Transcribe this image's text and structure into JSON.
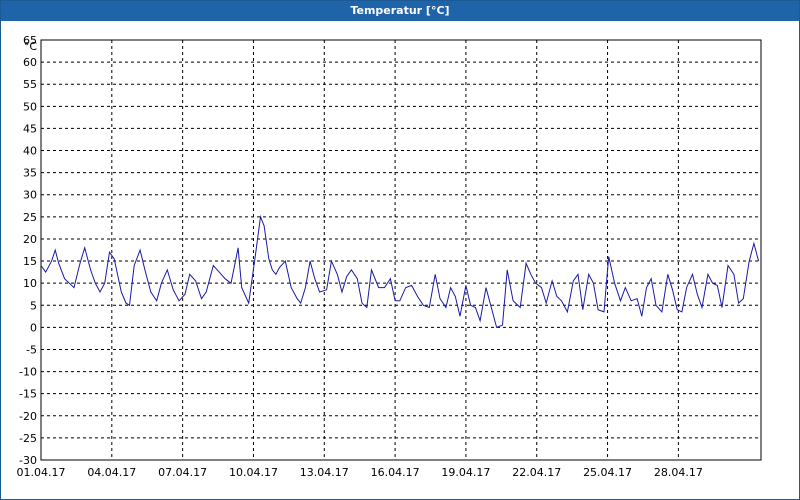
{
  "window": {
    "title": "Temperatur [°C]"
  },
  "chart_data": {
    "type": "line",
    "title": "Temperatur [°C]",
    "ylabel": "°C",
    "ylim": [
      -30,
      65
    ],
    "yticks": [
      65,
      60,
      55,
      50,
      45,
      40,
      35,
      30,
      25,
      20,
      15,
      10,
      5,
      0,
      -5,
      -10,
      -15,
      -20,
      -25,
      -30
    ],
    "xlim": [
      0,
      30.5
    ],
    "xticks": [
      {
        "day": 0,
        "label": "01.04.17"
      },
      {
        "day": 3,
        "label": "04.04.17"
      },
      {
        "day": 6,
        "label": "07.04.17"
      },
      {
        "day": 9,
        "label": "10.04.17"
      },
      {
        "day": 12,
        "label": "13.04.17"
      },
      {
        "day": 15,
        "label": "16.04.17"
      },
      {
        "day": 18,
        "label": "19.04.17"
      },
      {
        "day": 21,
        "label": "22.04.17"
      },
      {
        "day": 24,
        "label": "25.04.17"
      },
      {
        "day": 27,
        "label": "28.04.17"
      }
    ],
    "grid": true,
    "line_color": "#1a1aa6",
    "series": [
      {
        "name": "",
        "x": [
          0,
          0.2,
          0.45,
          0.6,
          0.75,
          1.0,
          1.2,
          1.4,
          1.65,
          1.85,
          2.1,
          2.3,
          2.5,
          2.7,
          2.9,
          3.1,
          3.4,
          3.6,
          3.75,
          3.95,
          4.2,
          4.4,
          4.65,
          4.9,
          5.1,
          5.35,
          5.6,
          5.85,
          6.1,
          6.3,
          6.55,
          6.8,
          7.0,
          7.3,
          7.55,
          7.8,
          8.05,
          8.2,
          8.35,
          8.5,
          8.8,
          9.05,
          9.3,
          9.45,
          9.65,
          9.8,
          9.95,
          10.1,
          10.35,
          10.6,
          10.85,
          11.0,
          11.2,
          11.4,
          11.6,
          11.8,
          12.1,
          12.3,
          12.55,
          12.75,
          12.95,
          13.15,
          13.4,
          13.6,
          13.8,
          14.0,
          14.3,
          14.55,
          14.8,
          15.0,
          15.2,
          15.45,
          15.7,
          15.95,
          16.2,
          16.45,
          16.7,
          16.9,
          17.15,
          17.35,
          17.55,
          17.75,
          18.0,
          18.2,
          18.4,
          18.6,
          18.85,
          19.05,
          19.3,
          19.55,
          19.75,
          20.0,
          20.3,
          20.55,
          20.75,
          20.95,
          21.2,
          21.4,
          21.65,
          21.85,
          22.05,
          22.3,
          22.55,
          22.75,
          22.95,
          23.2,
          23.4,
          23.6,
          23.85,
          24.05,
          24.3,
          24.55,
          24.75,
          25.0,
          25.25,
          25.45,
          25.65,
          25.85,
          26.05,
          26.3,
          26.55,
          26.75,
          26.95,
          27.15,
          27.35,
          27.6,
          27.8,
          28.0,
          28.25,
          28.45,
          28.65,
          28.85,
          29.1,
          29.35,
          29.55,
          29.75,
          30.0,
          30.2,
          30.4
        ],
        "y": [
          14.0,
          12.5,
          15.0,
          17.5,
          14.5,
          11.0,
          10.0,
          9.0,
          14.5,
          18.0,
          13.0,
          10.0,
          8.0,
          10.0,
          17.0,
          15.5,
          8.0,
          5.5,
          5.0,
          14.0,
          17.5,
          13.0,
          8.0,
          6.0,
          10.0,
          13.0,
          8.5,
          6.0,
          7.5,
          12.0,
          10.5,
          6.5,
          8.0,
          14.0,
          12.5,
          11.0,
          10.0,
          14.0,
          18.0,
          9.0,
          5.5,
          15.0,
          25.0,
          23.0,
          15.5,
          13.0,
          12.0,
          13.5,
          15.0,
          9.0,
          6.5,
          5.5,
          9.0,
          15.0,
          11.0,
          8.0,
          8.5,
          15.0,
          12.0,
          8.0,
          11.5,
          13.0,
          11.0,
          5.5,
          4.5,
          13.0,
          9.0,
          9.0,
          11.0,
          6.0,
          6.0,
          9.0,
          9.5,
          7.0,
          5.0,
          4.5,
          12.0,
          6.5,
          4.5,
          9.0,
          7.0,
          2.5,
          9.5,
          5.0,
          4.5,
          1.5,
          9.0,
          5.0,
          0.0,
          0.5,
          13.0,
          6.0,
          4.5,
          14.5,
          12.0,
          10.0,
          9.0,
          5.5,
          10.5,
          7.0,
          6.0,
          3.5,
          10.5,
          12.0,
          4.0,
          12.0,
          10.0,
          4.0,
          3.5,
          16.0,
          10.0,
          6.0,
          9.0,
          6.0,
          6.5,
          2.5,
          9.0,
          11.0,
          5.0,
          3.5,
          12.0,
          8.5,
          4.0,
          3.5,
          9.0,
          12.0,
          7.5,
          4.5,
          12.0,
          10.0,
          9.5,
          4.5,
          14.0,
          12.0,
          5.5,
          6.5,
          15.0,
          19.0,
          15.0
        ]
      }
    ]
  }
}
